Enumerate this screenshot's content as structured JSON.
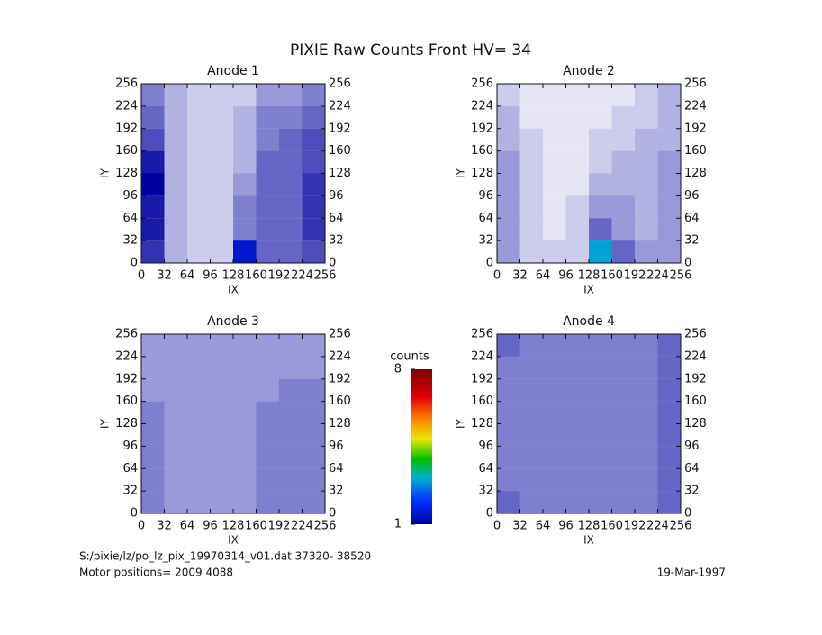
{
  "title": "PIXIE Raw Counts Front HV= 34",
  "chart_data": [
    {
      "type": "heatmap",
      "title": "Anode 1",
      "x_label": "IX",
      "y_label": "IY",
      "xlim": [
        0,
        256
      ],
      "ylim": [
        0,
        256
      ],
      "xticks": [
        0,
        32,
        64,
        96,
        128,
        160,
        192,
        224,
        256
      ],
      "yticks": [
        0,
        32,
        64,
        96,
        128,
        160,
        192,
        224,
        256
      ],
      "xbins": [
        0,
        32,
        64,
        96,
        128,
        160,
        192,
        224,
        256
      ],
      "ybins": [
        0,
        32,
        64,
        96,
        128,
        160,
        192,
        224,
        256
      ],
      "values": [
        [
          0.8,
          0.3,
          0.2,
          0.2,
          1.5,
          0.6,
          0.6,
          0.7
        ],
        [
          0.9,
          0.3,
          0.2,
          0.2,
          0.5,
          0.6,
          0.6,
          0.8
        ],
        [
          0.9,
          0.3,
          0.2,
          0.2,
          0.5,
          0.6,
          0.6,
          0.8
        ],
        [
          1.0,
          0.3,
          0.2,
          0.2,
          0.4,
          0.6,
          0.6,
          0.8
        ],
        [
          0.9,
          0.3,
          0.2,
          0.2,
          0.3,
          0.6,
          0.6,
          0.7
        ],
        [
          0.7,
          0.3,
          0.2,
          0.2,
          0.3,
          0.5,
          0.6,
          0.7
        ],
        [
          0.6,
          0.3,
          0.2,
          0.2,
          0.3,
          0.5,
          0.5,
          0.6
        ],
        [
          0.5,
          0.3,
          0.2,
          0.2,
          0.2,
          0.4,
          0.4,
          0.5
        ]
      ]
    },
    {
      "type": "heatmap",
      "title": "Anode 2",
      "x_label": "IX",
      "y_label": "IY",
      "xlim": [
        0,
        256
      ],
      "ylim": [
        0,
        256
      ],
      "xticks": [
        0,
        32,
        64,
        96,
        128,
        160,
        192,
        224,
        256
      ],
      "yticks": [
        0,
        32,
        64,
        96,
        128,
        160,
        192,
        224,
        256
      ],
      "xbins": [
        0,
        32,
        64,
        96,
        128,
        160,
        192,
        224,
        256
      ],
      "ybins": [
        0,
        32,
        64,
        96,
        128,
        160,
        192,
        224,
        256
      ],
      "values": [
        [
          0.4,
          0.2,
          0.2,
          0.2,
          3,
          0.6,
          0.4,
          0.4
        ],
        [
          0.4,
          0.2,
          0.1,
          0.2,
          0.6,
          0.4,
          0.3,
          0.4
        ],
        [
          0.4,
          0.2,
          0.1,
          0.2,
          0.4,
          0.4,
          0.3,
          0.4
        ],
        [
          0.4,
          0.2,
          0.1,
          0.1,
          0.3,
          0.3,
          0.3,
          0.4
        ],
        [
          0.4,
          0.2,
          0.1,
          0.1,
          0.2,
          0.3,
          0.3,
          0.4
        ],
        [
          0.3,
          0.2,
          0.1,
          0.1,
          0.2,
          0.2,
          0.3,
          0.3
        ],
        [
          0.3,
          0.1,
          0.1,
          0.1,
          0.1,
          0.2,
          0.2,
          0.3
        ],
        [
          0.2,
          0.1,
          0.1,
          0.1,
          0.1,
          0.1,
          0.2,
          0.3
        ]
      ]
    },
    {
      "type": "heatmap",
      "title": "Anode 3",
      "x_label": "IX",
      "y_label": "IY",
      "xlim": [
        0,
        256
      ],
      "ylim": [
        0,
        256
      ],
      "xticks": [
        0,
        32,
        64,
        96,
        128,
        160,
        192,
        224,
        256
      ],
      "yticks": [
        0,
        32,
        64,
        96,
        128,
        160,
        192,
        224,
        256
      ],
      "xbins": [
        0,
        32,
        64,
        96,
        128,
        160,
        192,
        224,
        256
      ],
      "ybins": [
        0,
        32,
        64,
        96,
        128,
        160,
        192,
        224,
        256
      ],
      "values": [
        [
          0.5,
          0.4,
          0.4,
          0.4,
          0.4,
          0.5,
          0.5,
          0.5
        ],
        [
          0.5,
          0.4,
          0.4,
          0.4,
          0.4,
          0.5,
          0.5,
          0.5
        ],
        [
          0.5,
          0.4,
          0.4,
          0.4,
          0.4,
          0.5,
          0.5,
          0.5
        ],
        [
          0.5,
          0.4,
          0.4,
          0.4,
          0.4,
          0.5,
          0.5,
          0.5
        ],
        [
          0.5,
          0.4,
          0.4,
          0.4,
          0.4,
          0.5,
          0.5,
          0.5
        ],
        [
          0.4,
          0.4,
          0.4,
          0.4,
          0.4,
          0.4,
          0.5,
          0.5
        ],
        [
          0.4,
          0.4,
          0.4,
          0.4,
          0.4,
          0.4,
          0.4,
          0.4
        ],
        [
          0.4,
          0.4,
          0.4,
          0.4,
          0.4,
          0.4,
          0.4,
          0.4
        ]
      ]
    },
    {
      "type": "heatmap",
      "title": "Anode 4",
      "x_label": "IX",
      "y_label": "IY",
      "xlim": [
        0,
        256
      ],
      "ylim": [
        0,
        256
      ],
      "xticks": [
        0,
        32,
        64,
        96,
        128,
        160,
        192,
        224,
        256
      ],
      "yticks": [
        0,
        32,
        64,
        96,
        128,
        160,
        192,
        224,
        256
      ],
      "xbins": [
        0,
        32,
        64,
        96,
        128,
        160,
        192,
        224,
        256
      ],
      "ybins": [
        0,
        32,
        64,
        96,
        128,
        160,
        192,
        224,
        256
      ],
      "values": [
        [
          0.6,
          0.5,
          0.5,
          0.5,
          0.5,
          0.5,
          0.5,
          0.6
        ],
        [
          0.5,
          0.5,
          0.5,
          0.5,
          0.5,
          0.5,
          0.5,
          0.6
        ],
        [
          0.5,
          0.5,
          0.5,
          0.5,
          0.5,
          0.5,
          0.5,
          0.6
        ],
        [
          0.5,
          0.5,
          0.5,
          0.5,
          0.5,
          0.5,
          0.5,
          0.6
        ],
        [
          0.5,
          0.5,
          0.5,
          0.5,
          0.5,
          0.5,
          0.5,
          0.6
        ],
        [
          0.5,
          0.5,
          0.5,
          0.5,
          0.5,
          0.5,
          0.5,
          0.6
        ],
        [
          0.5,
          0.5,
          0.5,
          0.5,
          0.5,
          0.5,
          0.5,
          0.6
        ],
        [
          0.6,
          0.5,
          0.5,
          0.5,
          0.5,
          0.5,
          0.5,
          0.6
        ]
      ]
    }
  ],
  "colorbar": {
    "label": "counts",
    "clim": [
      1,
      8
    ],
    "ticks": [
      1,
      8
    ]
  },
  "footer": {
    "file": "S:/pixie/lz/po_lz_pix_19970314_v01.dat   37320- 38520",
    "motor": "Motor positions= 2009  4088",
    "date": "19-Mar-1997"
  }
}
